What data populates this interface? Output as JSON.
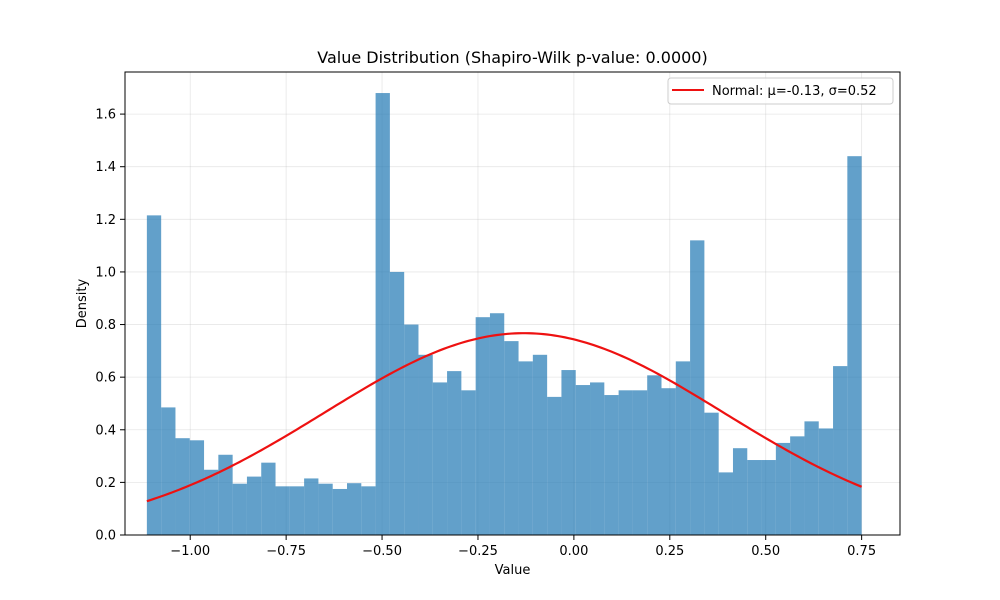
{
  "chart_data": {
    "type": "bar",
    "title": "Value Distribution (Shapiro-Wilk p-value: 0.0000)",
    "xlabel": "Value",
    "ylabel": "Density",
    "xlim": [
      -1.17,
      0.85
    ],
    "ylim": [
      0,
      1.76
    ],
    "xticks": [
      -1.0,
      -0.75,
      -0.5,
      -0.25,
      0.0,
      0.25,
      0.5,
      0.75
    ],
    "xtick_labels": [
      "−1.00",
      "−0.75",
      "−0.50",
      "−0.25",
      "0.00",
      "0.25",
      "0.50",
      "0.75"
    ],
    "yticks": [
      0.0,
      0.2,
      0.4,
      0.6,
      0.8,
      1.0,
      1.2,
      1.4,
      1.6
    ],
    "ytick_labels": [
      "0.0",
      "0.2",
      "0.4",
      "0.6",
      "0.8",
      "1.0",
      "1.2",
      "1.4",
      "1.6"
    ],
    "grid": true,
    "legend_position": "top-right",
    "histogram": {
      "bin_start": -1.113,
      "bin_end": 0.75,
      "bin_width": 0.03726,
      "bar_color": "#1f77b4",
      "bar_opacity": 0.7,
      "values": [
        1.215,
        0.485,
        0.368,
        0.36,
        0.248,
        0.305,
        0.195,
        0.222,
        0.275,
        0.185,
        0.185,
        0.215,
        0.195,
        0.175,
        0.197,
        0.185,
        1.68,
        1.0,
        0.8,
        0.685,
        0.58,
        0.623,
        0.55,
        0.828,
        0.843,
        0.737,
        0.66,
        0.685,
        0.525,
        0.627,
        0.57,
        0.58,
        0.532,
        0.55,
        0.55,
        0.607,
        0.558,
        0.66,
        1.12,
        0.465,
        0.238,
        0.33,
        0.285,
        0.285,
        0.35,
        0.375,
        0.432,
        0.405,
        0.642,
        1.44
      ]
    },
    "series": [
      {
        "name": "Normal: μ=-0.13, σ=0.52",
        "type": "normal_pdf",
        "mu": -0.13,
        "sigma": 0.52,
        "x_range": [
          -1.113,
          0.75
        ],
        "color": "#ee1111"
      }
    ]
  }
}
